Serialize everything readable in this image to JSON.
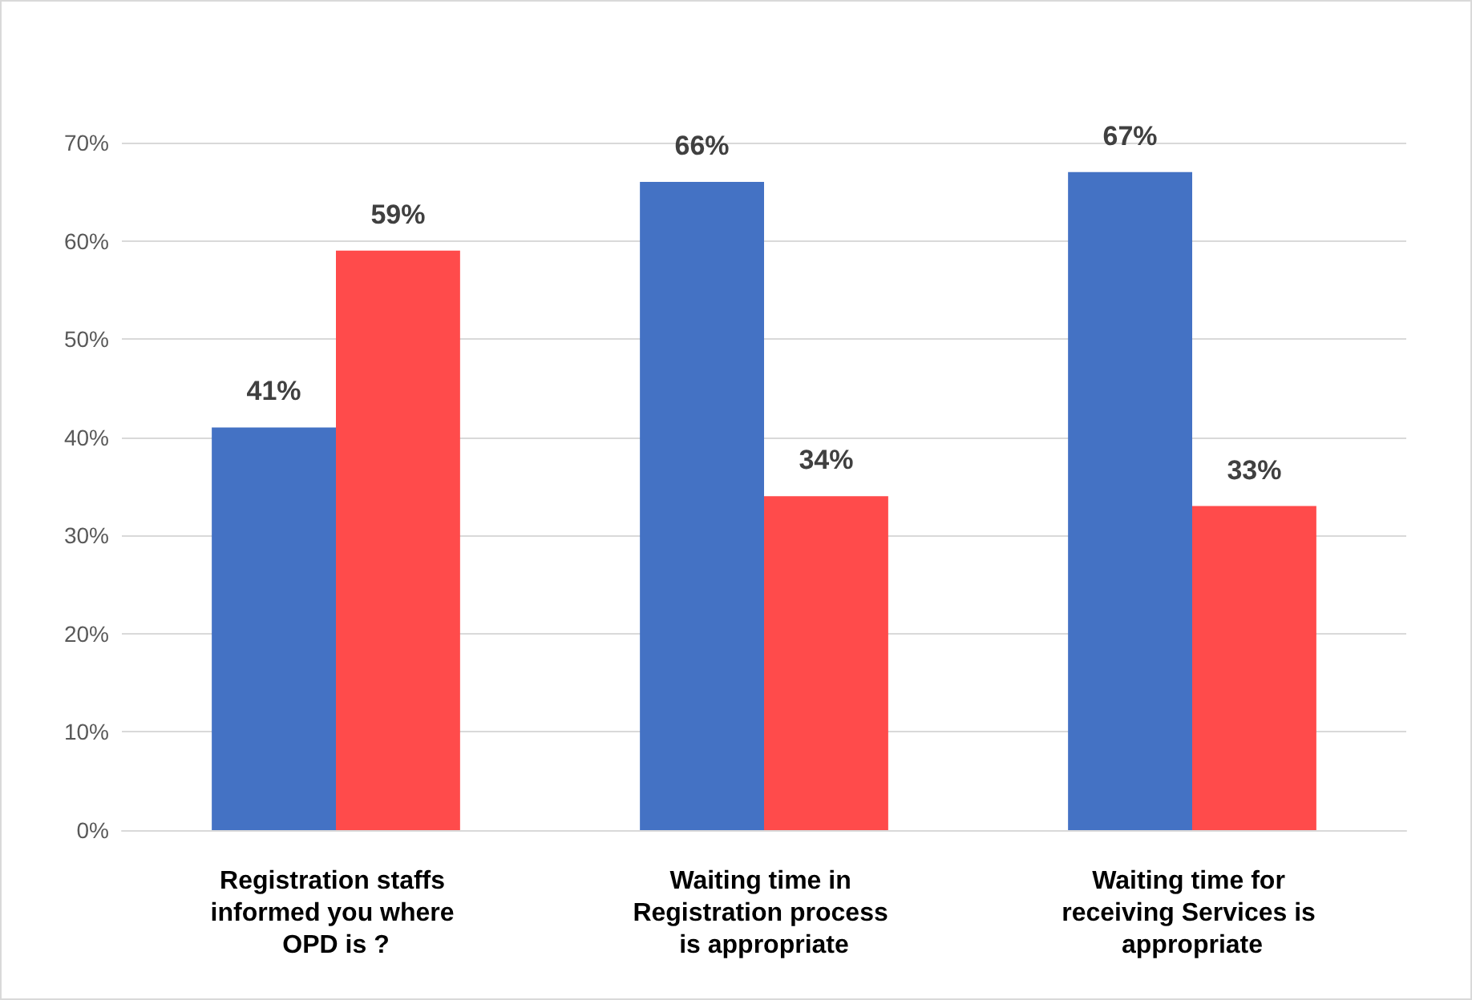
{
  "chart_data": {
    "type": "bar",
    "categories": [
      "Registration staffs informed you where OPD is ?",
      "Waiting time in Registration process is appropriate",
      "Waiting time for receiving Services is appropriate"
    ],
    "series": [
      {
        "color": "#4472c4",
        "values": [
          41,
          66,
          67
        ],
        "value_labels": [
          "41%",
          "66%",
          "67%"
        ]
      },
      {
        "color": "#ff4b4b",
        "values": [
          59,
          34,
          33
        ],
        "value_labels": [
          "59%",
          "34%",
          "33%"
        ]
      }
    ],
    "ylim": [
      0,
      70
    ],
    "yticks": [
      {
        "value": 0,
        "label": "0%"
      },
      {
        "value": 10,
        "label": "10%"
      },
      {
        "value": 20,
        "label": "20%"
      },
      {
        "value": 30,
        "label": "30%"
      },
      {
        "value": 40,
        "label": "40%"
      },
      {
        "value": 50,
        "label": "50%"
      },
      {
        "value": 60,
        "label": "60%"
      },
      {
        "value": 70,
        "label": "70%"
      }
    ],
    "grid": "y"
  }
}
